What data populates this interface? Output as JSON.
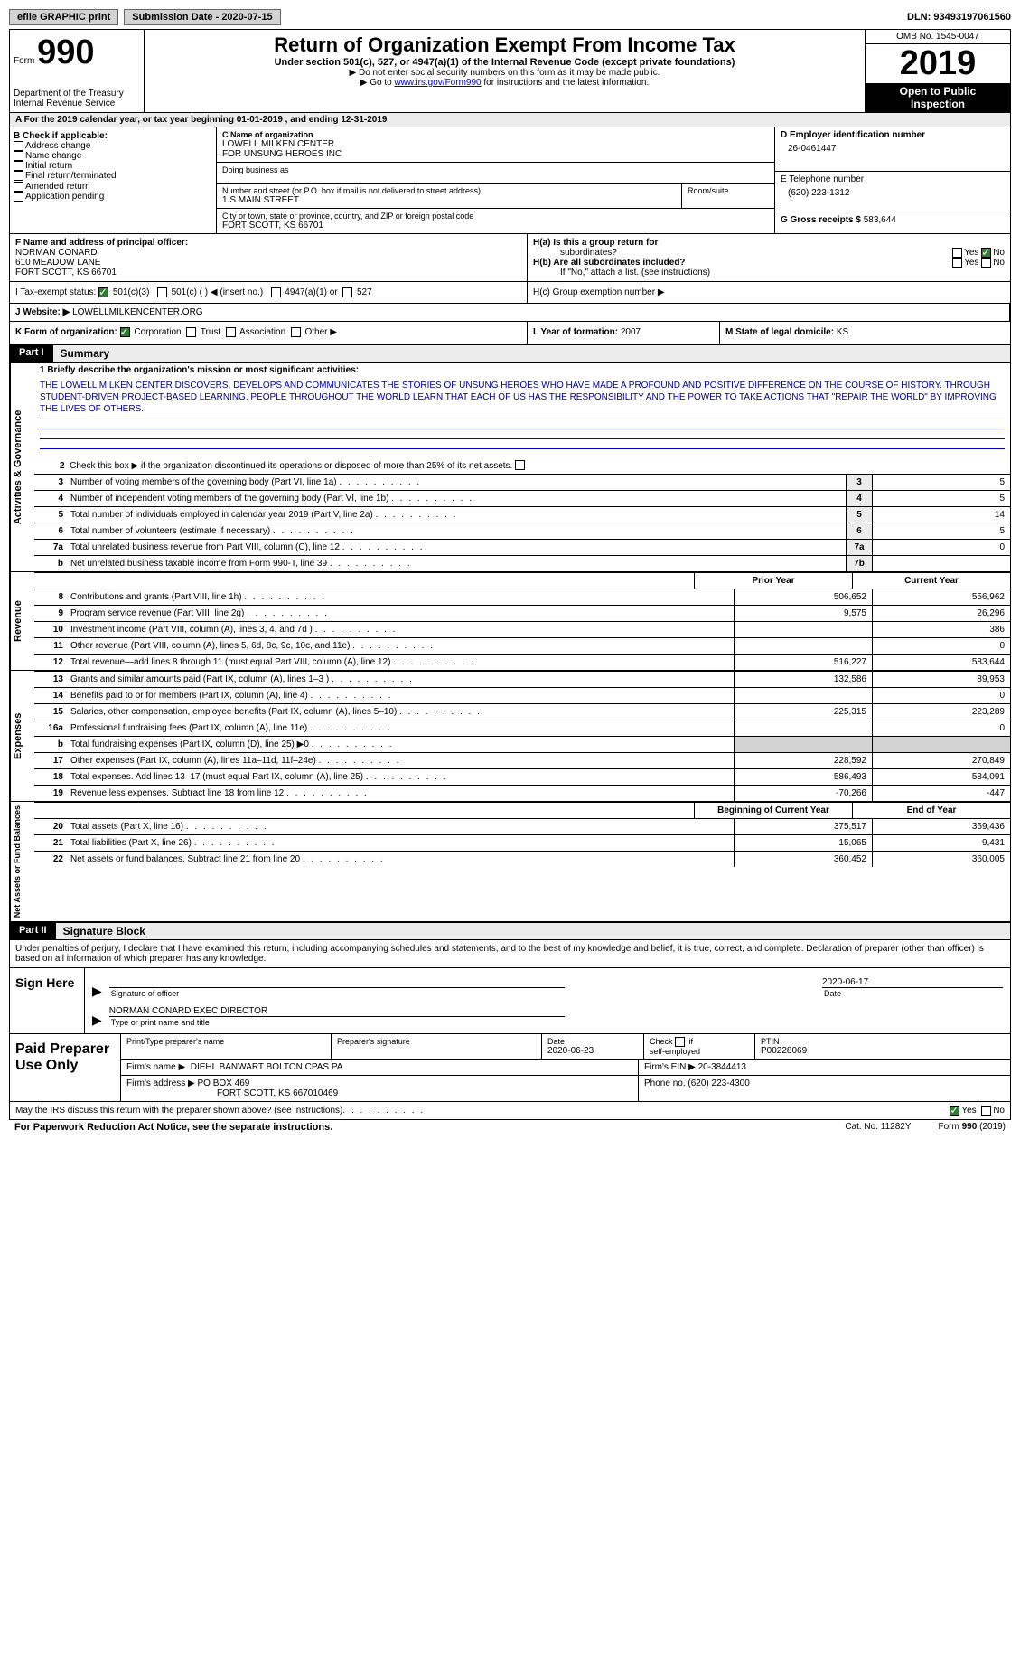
{
  "topbar": {
    "efile": "efile GRAPHIC print",
    "submission": "Submission Date - 2020-07-15",
    "dln": "DLN: 93493197061560"
  },
  "header": {
    "form_prefix": "Form",
    "form_number": "990",
    "dept1": "Department of the Treasury",
    "dept2": "Internal Revenue Service",
    "title": "Return of Organization Exempt From Income Tax",
    "subtitle": "Under section 501(c), 527, or 4947(a)(1) of the Internal Revenue Code (except private foundations)",
    "instr1": "▶ Do not enter social security numbers on this form as it may be made public.",
    "instr2_pre": "▶ Go to ",
    "instr2_link": "www.irs.gov/Form990",
    "instr2_post": " for instructions and the latest information.",
    "omb": "OMB No. 1545-0047",
    "year": "2019",
    "open1": "Open to Public",
    "open2": "Inspection"
  },
  "A": {
    "line": "A For the 2019 calendar year, or tax year beginning 01-01-2019   , and ending 12-31-2019"
  },
  "B": {
    "label": "B Check if applicable:",
    "opts": [
      "Address change",
      "Name change",
      "Initial return",
      "Final return/terminated",
      "Amended return",
      "Application pending"
    ]
  },
  "C": {
    "name_label": "C Name of organization",
    "name1": "LOWELL MILKEN CENTER",
    "name2": "FOR UNSUNG HEROES INC",
    "dba_label": "Doing business as",
    "addr_label": "Number and street (or P.O. box if mail is not delivered to street address)",
    "room_label": "Room/suite",
    "addr": "1 S MAIN STREET",
    "city_label": "City or town, state or province, country, and ZIP or foreign postal code",
    "city": "FORT SCOTT, KS  66701"
  },
  "D": {
    "label": "D Employer identification number",
    "value": "26-0461447"
  },
  "E": {
    "label": "E Telephone number",
    "value": "(620) 223-1312"
  },
  "G": {
    "label": "G Gross receipts $",
    "value": "583,644"
  },
  "F": {
    "label": "F  Name and address of principal officer:",
    "name": "NORMAN CONARD",
    "addr1": "610 MEADOW LANE",
    "addr2": "FORT SCOTT, KS  66701"
  },
  "H": {
    "a": "H(a)  Is this a group return for",
    "a2": "subordinates?",
    "b": "H(b)  Are all subordinates included?",
    "b2": "If \"No,\" attach a list. (see instructions)",
    "c": "H(c)  Group exemption number ▶",
    "yes": "Yes",
    "no": "No"
  },
  "I": {
    "label": "I   Tax-exempt status:",
    "o1": "501(c)(3)",
    "o2": "501(c) (  ) ◀ (insert no.)",
    "o3": "4947(a)(1) or",
    "o4": "527"
  },
  "J": {
    "label": "J   Website: ▶",
    "value": "LOWELLMILKENCENTER.ORG"
  },
  "K": {
    "label": "K Form of organization:",
    "o1": "Corporation",
    "o2": "Trust",
    "o3": "Association",
    "o4": "Other ▶"
  },
  "L": {
    "label": "L Year of formation:",
    "value": "2007"
  },
  "M": {
    "label": "M State of legal domicile:",
    "value": "KS"
  },
  "part1": {
    "tag": "Part I",
    "title": "Summary"
  },
  "summary": {
    "l1_label": "1  Briefly describe the organization's mission or most significant activities:",
    "mission": "THE LOWELL MILKEN CENTER DISCOVERS, DEVELOPS AND COMMUNICATES THE STORIES OF UNSUNG HEROES WHO HAVE MADE A PROFOUND AND POSITIVE DIFFERENCE ON THE COURSE OF HISTORY. THROUGH STUDENT-DRIVEN PROJECT-BASED LEARNING, PEOPLE THROUGHOUT THE WORLD LEARN THAT EACH OF US HAS THE RESPONSIBILITY AND THE POWER TO TAKE ACTIONS THAT \"REPAIR THE WORLD\" BY IMPROVING THE LIVES OF OTHERS.",
    "l2": "Check this box ▶      if the organization discontinued its operations or disposed of more than 25% of its net assets.",
    "rows": [
      {
        "n": "3",
        "d": "Number of voting members of the governing body (Part VI, line 1a)",
        "box": "3",
        "v": "5"
      },
      {
        "n": "4",
        "d": "Number of independent voting members of the governing body (Part VI, line 1b)",
        "box": "4",
        "v": "5"
      },
      {
        "n": "5",
        "d": "Total number of individuals employed in calendar year 2019 (Part V, line 2a)",
        "box": "5",
        "v": "14"
      },
      {
        "n": "6",
        "d": "Total number of volunteers (estimate if necessary)",
        "box": "6",
        "v": "5"
      },
      {
        "n": "7a",
        "d": "Total unrelated business revenue from Part VIII, column (C), line 12",
        "box": "7a",
        "v": "0"
      },
      {
        "n": "b",
        "d": "Net unrelated business taxable income from Form 990-T, line 39",
        "box": "7b",
        "v": ""
      }
    ],
    "prior": "Prior Year",
    "current": "Current Year",
    "rev": [
      {
        "n": "8",
        "d": "Contributions and grants (Part VIII, line 1h)",
        "p": "506,652",
        "c": "556,962"
      },
      {
        "n": "9",
        "d": "Program service revenue (Part VIII, line 2g)",
        "p": "9,575",
        "c": "26,296"
      },
      {
        "n": "10",
        "d": "Investment income (Part VIII, column (A), lines 3, 4, and 7d )",
        "p": "",
        "c": "386"
      },
      {
        "n": "11",
        "d": "Other revenue (Part VIII, column (A), lines 5, 6d, 8c, 9c, 10c, and 11e)",
        "p": "",
        "c": "0"
      },
      {
        "n": "12",
        "d": "Total revenue—add lines 8 through 11 (must equal Part VIII, column (A), line 12)",
        "p": "516,227",
        "c": "583,644"
      }
    ],
    "exp": [
      {
        "n": "13",
        "d": "Grants and similar amounts paid (Part IX, column (A), lines 1–3 )",
        "p": "132,586",
        "c": "89,953"
      },
      {
        "n": "14",
        "d": "Benefits paid to or for members (Part IX, column (A), line 4)",
        "p": "",
        "c": "0"
      },
      {
        "n": "15",
        "d": "Salaries, other compensation, employee benefits (Part IX, column (A), lines 5–10)",
        "p": "225,315",
        "c": "223,289"
      },
      {
        "n": "16a",
        "d": "Professional fundraising fees (Part IX, column (A), line 11e)",
        "p": "",
        "c": "0"
      },
      {
        "n": "b",
        "d": "Total fundraising expenses (Part IX, column (D), line 25) ▶0",
        "p": "shade",
        "c": "shade"
      },
      {
        "n": "17",
        "d": "Other expenses (Part IX, column (A), lines 11a–11d, 11f–24e)",
        "p": "228,592",
        "c": "270,849"
      },
      {
        "n": "18",
        "d": "Total expenses. Add lines 13–17 (must equal Part IX, column (A), line 25)",
        "p": "586,493",
        "c": "584,091"
      },
      {
        "n": "19",
        "d": "Revenue less expenses. Subtract line 18 from line 12",
        "p": "-70,266",
        "c": "-447"
      }
    ],
    "begin": "Beginning of Current Year",
    "end": "End of Year",
    "net": [
      {
        "n": "20",
        "d": "Total assets (Part X, line 16)",
        "p": "375,517",
        "c": "369,436"
      },
      {
        "n": "21",
        "d": "Total liabilities (Part X, line 26)",
        "p": "15,065",
        "c": "9,431"
      },
      {
        "n": "22",
        "d": "Net assets or fund balances. Subtract line 21 from line 20",
        "p": "360,452",
        "c": "360,005"
      }
    ]
  },
  "sidelabels": {
    "gov": "Activities & Governance",
    "rev": "Revenue",
    "exp": "Expenses",
    "net": "Net Assets or Fund Balances"
  },
  "part2": {
    "tag": "Part II",
    "title": "Signature Block"
  },
  "sig": {
    "penalty": "Under penalties of perjury, I declare that I have examined this return, including accompanying schedules and statements, and to the best of my knowledge and belief, it is true, correct, and complete. Declaration of preparer (other than officer) is based on all information of which preparer has any knowledge.",
    "sign_here": "Sign Here",
    "sig_officer": "Signature of officer",
    "date": "Date",
    "date_val": "2020-06-17",
    "name": "NORMAN CONARD  EXEC DIRECTOR",
    "type_label": "Type or print name and title"
  },
  "prep": {
    "label": "Paid Preparer Use Only",
    "h1": "Print/Type preparer's name",
    "h2": "Preparer's signature",
    "h3": "Date",
    "h3v": "2020-06-23",
    "h4": "Check        if self-employed",
    "h5": "PTIN",
    "h5v": "P00228069",
    "firm_label": "Firm's name   ▶",
    "firm": "DIEHL BANWART BOLTON CPAS PA",
    "ein_label": "Firm's EIN ▶",
    "ein": "20-3844413",
    "addr_label": "Firm's address ▶",
    "addr1": "PO BOX 469",
    "addr2": "FORT SCOTT, KS  667010469",
    "phone_label": "Phone no.",
    "phone": "(620) 223-4300"
  },
  "discuss": {
    "q": "May the IRS discuss this return with the preparer shown above? (see instructions)",
    "yes": "Yes",
    "no": "No"
  },
  "footer": {
    "reduction": "For Paperwork Reduction Act Notice, see the separate instructions.",
    "cat": "Cat. No. 11282Y",
    "formver": "Form 990 (2019)"
  }
}
